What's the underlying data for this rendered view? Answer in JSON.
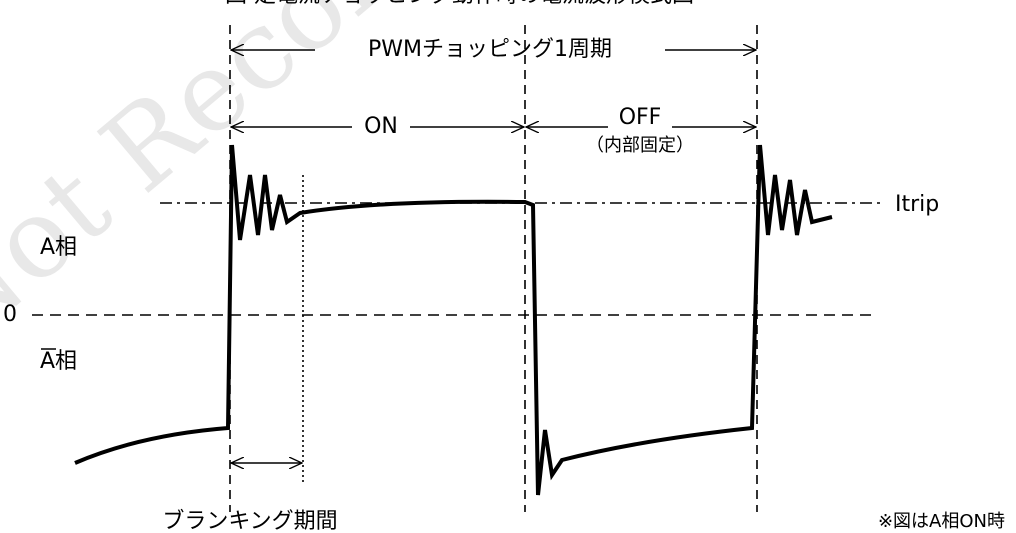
{
  "title": "図 定電流チョッピング動作時の電流波形模式図",
  "watermark": "Not Recommended",
  "labels": {
    "period": "PWMチョッピング1周期",
    "on": "ON",
    "off": "OFF",
    "off_note": "（内部固定）",
    "itrip": "Itrip",
    "phase_a": "A相",
    "zero": "0",
    "phase_a_bar": "A相",
    "blanking": "ブランキング期間",
    "note": "※図はA相ON時"
  }
}
